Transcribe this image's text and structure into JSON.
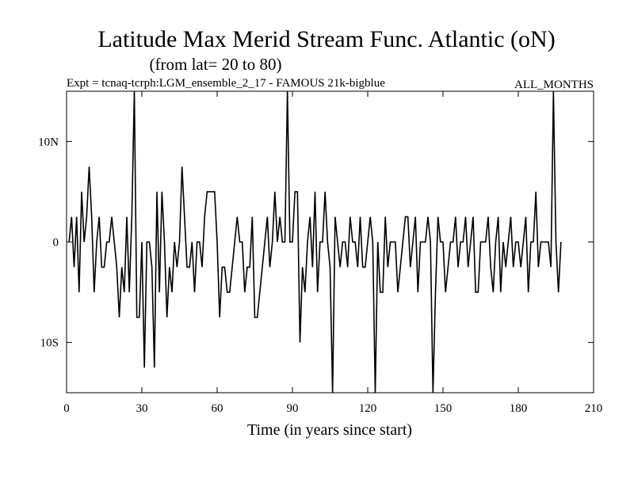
{
  "chart_data": {
    "type": "line",
    "title": "Latitude Max Merid Stream Func. Atlantic (oN)",
    "subtitle": "(from lat= 20 to 80)",
    "expt_label": "Expt = tcnaq-tcrph:LGM_ensemble_2_17 - FAMOUS 21k-bigblue",
    "months_label": "ALL_MONTHS",
    "xlabel": "Time (in years since start)",
    "ylabel": "",
    "xlim": [
      0,
      210
    ],
    "ylim": [
      -15,
      15
    ],
    "x_ticks": [
      0,
      30,
      60,
      90,
      120,
      150,
      180,
      210
    ],
    "x_tick_labels": [
      "0",
      "30",
      "60",
      "90",
      "120",
      "150",
      "180",
      "210"
    ],
    "y_ticks": [
      10,
      0,
      -10
    ],
    "y_tick_labels": [
      "10N",
      "0",
      "10S"
    ],
    "x_start": 1,
    "x_step": 1,
    "series": [
      {
        "name": "Latitude Max Merid Stream Func.",
        "values": [
          0,
          2.5,
          -2.5,
          2.5,
          -5,
          5,
          0,
          2.5,
          7.5,
          2.5,
          -5,
          0,
          2.5,
          -2.5,
          -2.5,
          0,
          0,
          2.5,
          0,
          -2.5,
          -7.5,
          -2.5,
          -5,
          2.5,
          -5,
          2.5,
          15,
          -7.5,
          -7.5,
          0,
          -12.5,
          0,
          0,
          -2.5,
          -12.5,
          5,
          -5,
          5,
          0,
          -7.5,
          -2.5,
          -5,
          0,
          -2.5,
          0,
          7.5,
          2.5,
          -2.5,
          -2.5,
          0,
          -5,
          0,
          0,
          -2.5,
          2.5,
          5,
          5,
          5,
          5,
          0,
          -7.5,
          -2.5,
          -2.5,
          -5,
          -5,
          -2.5,
          0,
          2.5,
          0,
          0,
          -5,
          -2.5,
          -2.5,
          2.5,
          -7.5,
          -7.5,
          -5,
          -2.5,
          0,
          2.5,
          -2.5,
          0,
          5,
          0,
          2.5,
          0,
          0,
          15,
          0,
          0,
          5,
          5,
          -10,
          -2.5,
          -5,
          0,
          2.5,
          -2.5,
          5,
          -5,
          0,
          0,
          5,
          0,
          -2.5,
          -15,
          2.5,
          0,
          -2.5,
          0,
          0,
          -2.5,
          2.5,
          0,
          0,
          -2.5,
          2.5,
          -2.5,
          -2.5,
          0,
          2.5,
          0,
          -15,
          0,
          -5,
          -5,
          2.5,
          -2.5,
          0,
          0,
          0,
          -5,
          -2.5,
          0,
          2.5,
          2.5,
          -2.5,
          0,
          2.5,
          -5,
          0,
          0,
          0,
          2.5,
          0,
          -15,
          -5,
          2.5,
          0,
          0,
          -5,
          -2.5,
          0,
          0,
          2.5,
          -2.5,
          0,
          0,
          2.5,
          -2.5,
          0,
          2.5,
          -5,
          -5,
          0,
          0,
          0,
          2.5,
          -2.5,
          -5,
          0,
          2.5,
          -5,
          0,
          -2.5,
          0,
          2.5,
          -2.5,
          0,
          0,
          -2.5,
          0,
          2.5,
          -5,
          0,
          0,
          5,
          -2.5,
          0,
          0,
          0,
          0,
          -2.5,
          15,
          0,
          -5,
          0
        ]
      }
    ]
  }
}
